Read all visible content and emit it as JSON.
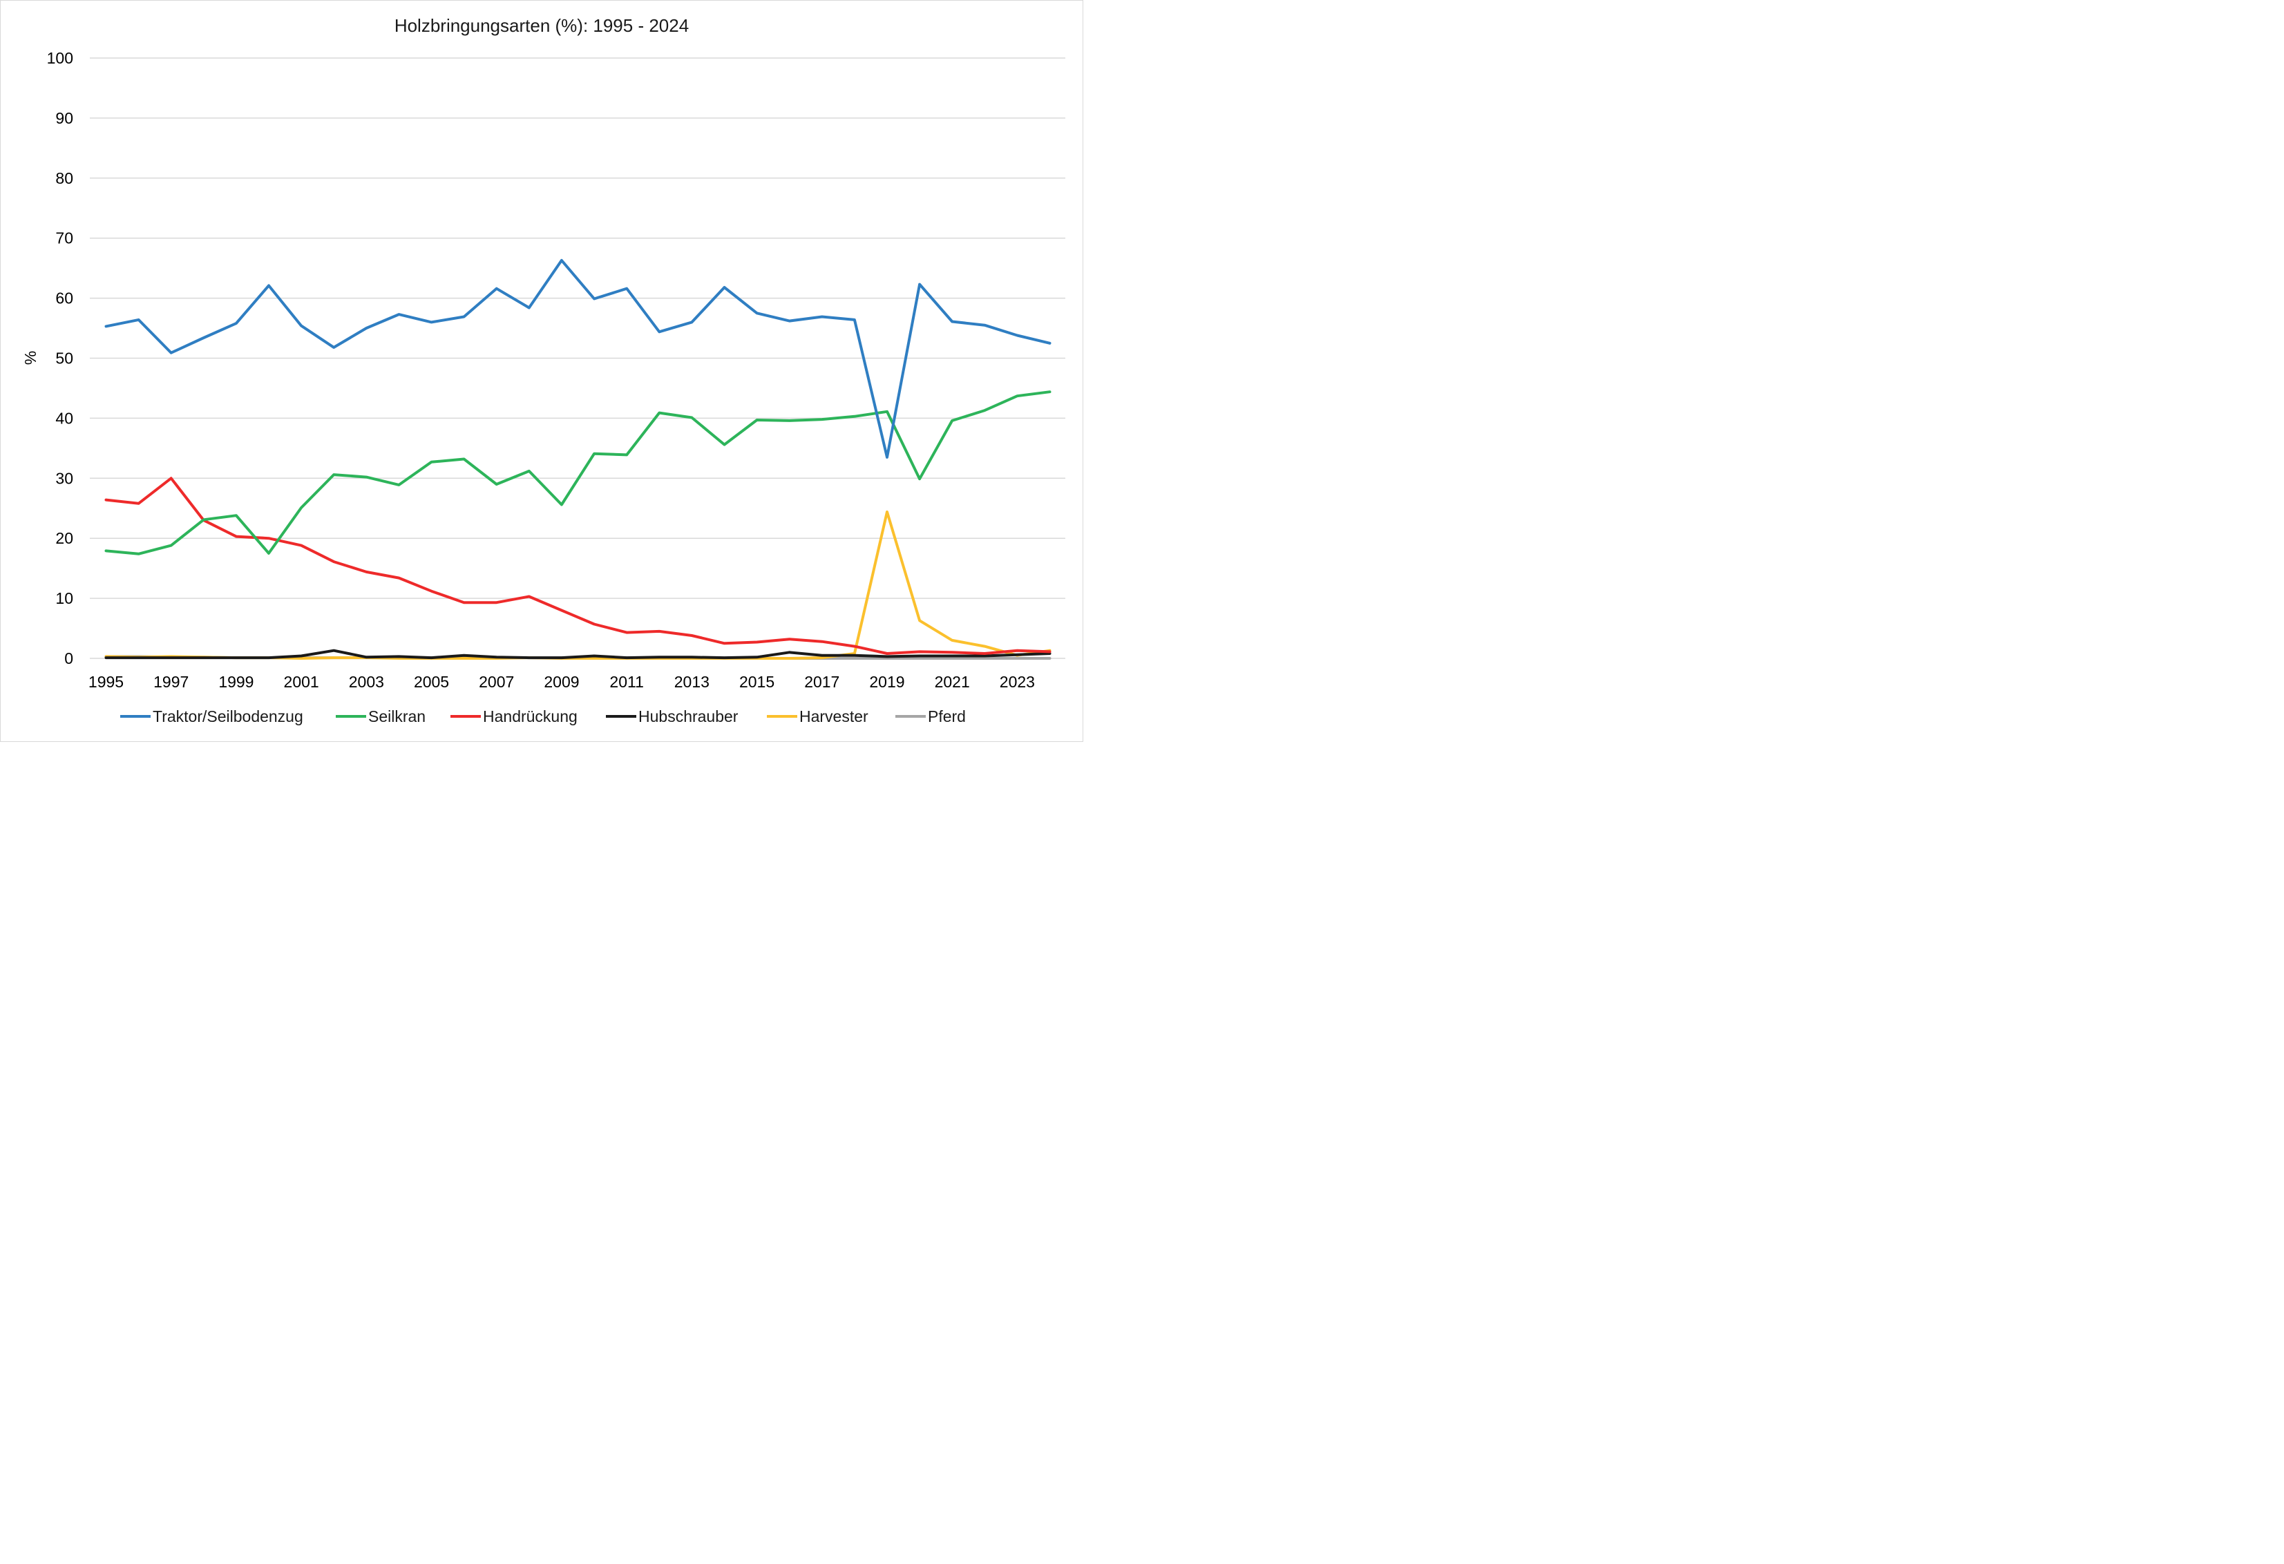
{
  "chart_data": {
    "type": "line",
    "title": "Holzbringungsarten (%): 1995 - 2024",
    "xlabel": "",
    "ylabel": "%",
    "ylim": [
      0,
      100
    ],
    "yticks": [
      "0",
      "10",
      "20",
      "30",
      "40",
      "50",
      "60",
      "70",
      "80",
      "90",
      "100"
    ],
    "x": [
      1995,
      1996,
      1997,
      1998,
      1999,
      2000,
      2001,
      2002,
      2003,
      2004,
      2005,
      2006,
      2007,
      2008,
      2009,
      2010,
      2011,
      2012,
      2013,
      2014,
      2015,
      2016,
      2017,
      2018,
      2019,
      2020,
      2021,
      2022,
      2023,
      2024
    ],
    "xticks": [
      "1995",
      "1997",
      "1999",
      "2001",
      "2003",
      "2005",
      "2007",
      "2009",
      "2011",
      "2013",
      "2015",
      "2017",
      "2019",
      "2021",
      "2023"
    ],
    "grid": true,
    "legend_position": "bottom",
    "series": [
      {
        "name": "Traktor/Seilbodenzug",
        "color": "#2f7ec2",
        "values": [
          55.3,
          56.4,
          50.9,
          53.4,
          55.8,
          62.1,
          55.4,
          51.8,
          55.0,
          57.3,
          56.0,
          56.9,
          61.6,
          58.4,
          66.3,
          59.9,
          61.6,
          54.4,
          56.0,
          61.8,
          57.5,
          56.2,
          56.9,
          56.4,
          33.5,
          62.3,
          56.1,
          55.5,
          53.8,
          52.5
        ]
      },
      {
        "name": "Seilkran",
        "color": "#2db45a",
        "values": [
          17.9,
          17.4,
          18.8,
          23.1,
          23.8,
          17.5,
          25.1,
          30.6,
          30.2,
          28.9,
          32.7,
          33.2,
          29.0,
          31.2,
          25.6,
          34.1,
          33.9,
          40.9,
          40.1,
          35.6,
          39.7,
          39.6,
          39.8,
          40.3,
          41.1,
          29.9,
          39.6,
          41.3,
          43.7,
          44.4
        ]
      },
      {
        "name": "Handrückung",
        "color": "#ee2a2a",
        "values": [
          26.4,
          25.8,
          30.0,
          23.0,
          20.3,
          20.0,
          18.8,
          16.1,
          14.4,
          13.4,
          11.2,
          9.3,
          9.3,
          10.3,
          8.0,
          5.7,
          4.3,
          4.5,
          3.8,
          2.5,
          2.7,
          3.2,
          2.8,
          2.0,
          0.8,
          1.1,
          1.0,
          0.8,
          1.3,
          1.1
        ]
      },
      {
        "name": "Hubschrauber",
        "color": "#1a1a1a",
        "values": [
          0.1,
          0.1,
          0.1,
          0.1,
          0.1,
          0.1,
          0.4,
          1.3,
          0.2,
          0.3,
          0.1,
          0.5,
          0.2,
          0.1,
          0.1,
          0.4,
          0.1,
          0.2,
          0.2,
          0.1,
          0.2,
          1.0,
          0.5,
          0.5,
          0.3,
          0.4,
          0.4,
          0.4,
          0.6,
          0.8
        ]
      },
      {
        "name": "Harvester",
        "color": "#fbc02d",
        "values": [
          0.3,
          0.2,
          0.3,
          0.2,
          0.1,
          0.1,
          0.0,
          0.1,
          0.1,
          0.0,
          0.0,
          0.0,
          0.0,
          0.1,
          0.0,
          0.0,
          0.0,
          0.0,
          0.0,
          0.0,
          0.0,
          0.0,
          0.1,
          0.8,
          24.4,
          6.3,
          3.0,
          2.0,
          0.5,
          1.3
        ]
      },
      {
        "name": "Pferd",
        "color": "#a6a6a6",
        "values": [
          0.3,
          0.3,
          0.2,
          0.2,
          0.1,
          0.1,
          0.1,
          0.1,
          0.1,
          0.1,
          0.1,
          0.1,
          0.1,
          0.1,
          0.1,
          0.1,
          0.1,
          0.1,
          0.1,
          0.0,
          0.0,
          0.0,
          0.0,
          0.0,
          0.0,
          0.0,
          0.0,
          0.0,
          0.0,
          0.0
        ]
      }
    ]
  }
}
